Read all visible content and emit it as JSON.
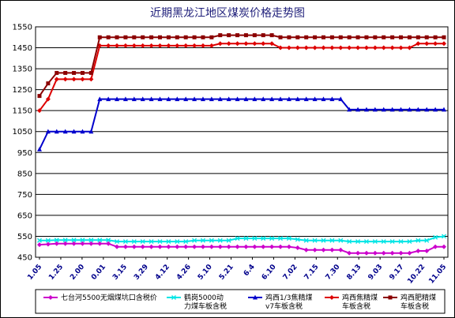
{
  "chart_data": {
    "type": "line",
    "title": "近期黑龙江地区煤炭价格走势图",
    "ylim": [
      450,
      1550
    ],
    "yticks": [
      450,
      550,
      650,
      750,
      850,
      950,
      1050,
      1150,
      1250,
      1350,
      1450,
      1550
    ],
    "x_tick_labels": [
      "1.05",
      "1.25",
      "2.00",
      "0.01",
      "3.15",
      "3.29",
      "4.12",
      "4.26",
      "5.10",
      "5.21",
      "6.4",
      "6.10",
      "7.02",
      "7.15",
      "7.30",
      "8.13",
      "9.03",
      "9.17",
      "10.22",
      "11.05"
    ],
    "grid": true,
    "legend_position": "bottom",
    "series": [
      {
        "name": "七台河5500无烟煤坑口含税价",
        "color": "#cc00cc",
        "marker": "diamond",
        "values": [
          510,
          512,
          515,
          515,
          515,
          515,
          515,
          515,
          515,
          500,
          500,
          500,
          500,
          500,
          500,
          500,
          500,
          500,
          500,
          500,
          500,
          500,
          500,
          500,
          500,
          500,
          500,
          500,
          500,
          500,
          495,
          485,
          485,
          485,
          485,
          485,
          470,
          470,
          470,
          470,
          470,
          470,
          470,
          470,
          480,
          480,
          500,
          500
        ]
      },
      {
        "name": "鹤岗5000动力煤车板含税",
        "color": "#00e5e5",
        "marker": "x",
        "values": [
          530,
          530,
          532,
          532,
          532,
          532,
          532,
          532,
          532,
          525,
          525,
          525,
          525,
          525,
          525,
          525,
          525,
          525,
          530,
          530,
          530,
          530,
          530,
          540,
          540,
          540,
          540,
          540,
          540,
          540,
          535,
          530,
          530,
          530,
          530,
          530,
          525,
          525,
          525,
          525,
          525,
          525,
          525,
          525,
          530,
          530,
          545,
          550
        ]
      },
      {
        "name": "鸡西1/3焦精煤v7车板含税",
        "color": "#0000cc",
        "marker": "triangle",
        "values": [
          965,
          1050,
          1050,
          1050,
          1050,
          1050,
          1050,
          1205,
          1205,
          1205,
          1205,
          1205,
          1205,
          1205,
          1205,
          1205,
          1205,
          1205,
          1205,
          1205,
          1205,
          1205,
          1205,
          1205,
          1205,
          1205,
          1205,
          1205,
          1205,
          1205,
          1205,
          1205,
          1205,
          1205,
          1205,
          1205,
          1155,
          1155,
          1155,
          1155,
          1155,
          1155,
          1155,
          1155,
          1155,
          1155,
          1155,
          1155
        ]
      },
      {
        "name": "鸡西焦精煤车板含税",
        "color": "#dd0000",
        "marker": "diamond",
        "values": [
          1150,
          1205,
          1300,
          1300,
          1300,
          1300,
          1300,
          1460,
          1460,
          1460,
          1460,
          1460,
          1460,
          1460,
          1460,
          1460,
          1460,
          1460,
          1460,
          1460,
          1460,
          1470,
          1470,
          1470,
          1470,
          1470,
          1470,
          1470,
          1450,
          1450,
          1450,
          1450,
          1450,
          1450,
          1450,
          1450,
          1450,
          1450,
          1450,
          1450,
          1450,
          1450,
          1450,
          1450,
          1470,
          1470,
          1470,
          1470
        ]
      },
      {
        "name": "鸡西肥精煤车板含税",
        "color": "#8b0000",
        "marker": "square",
        "values": [
          1220,
          1280,
          1330,
          1330,
          1330,
          1330,
          1330,
          1500,
          1500,
          1500,
          1500,
          1500,
          1500,
          1500,
          1500,
          1500,
          1500,
          1500,
          1500,
          1500,
          1500,
          1510,
          1510,
          1510,
          1510,
          1510,
          1510,
          1510,
          1500,
          1500,
          1500,
          1500,
          1500,
          1500,
          1500,
          1500,
          1500,
          1500,
          1500,
          1500,
          1500,
          1500,
          1500,
          1500,
          1500,
          1500,
          1500,
          1500
        ]
      }
    ]
  }
}
